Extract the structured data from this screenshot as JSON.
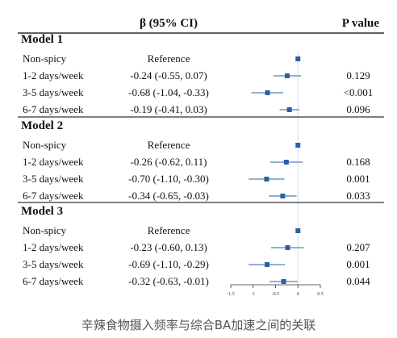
{
  "chart_data": {
    "type": "forest",
    "headers": {
      "estimate": "β (95% CI)",
      "pvalue": "P value"
    },
    "xlim": [
      -1.5,
      0.5
    ],
    "xticks": [
      -1.5,
      -1,
      -0.5,
      0,
      0.5
    ],
    "xtick_labels": [
      "-1.5",
      "-1",
      "-0.5",
      "0",
      "0.5"
    ],
    "reference_line": 0,
    "colors": {
      "marker": "#2b5ea7",
      "ci": "#2b5ea7",
      "refline": "#d9e3ee",
      "rule": "#000000"
    },
    "models": [
      {
        "name": "Model 1",
        "rows": [
          {
            "label": "Non-spicy",
            "est_text": "Reference",
            "p": "",
            "beta": 0,
            "lo": 0,
            "hi": 0
          },
          {
            "label": "1-2 days/week",
            "est_text": "-0.24 (-0.55, 0.07)",
            "p": "0.129",
            "beta": -0.24,
            "lo": -0.55,
            "hi": 0.07
          },
          {
            "label": "3-5 days/week",
            "est_text": "-0.68 (-1.04, -0.33)",
            "p": "<0.001",
            "beta": -0.68,
            "lo": -1.04,
            "hi": -0.33
          },
          {
            "label": "6-7 days/week",
            "est_text": "-0.19 (-0.41, 0.03)",
            "p": "0.096",
            "beta": -0.19,
            "lo": -0.41,
            "hi": 0.03
          }
        ]
      },
      {
        "name": "Model 2",
        "rows": [
          {
            "label": "Non-spicy",
            "est_text": "Reference",
            "p": "",
            "beta": 0,
            "lo": 0,
            "hi": 0
          },
          {
            "label": "1-2 days/week",
            "est_text": "-0.26 (-0.62, 0.11)",
            "p": "0.168",
            "beta": -0.26,
            "lo": -0.62,
            "hi": 0.11
          },
          {
            "label": "3-5 days/week",
            "est_text": "-0.70 (-1.10, -0.30)",
            "p": "0.001",
            "beta": -0.7,
            "lo": -1.1,
            "hi": -0.3
          },
          {
            "label": "6-7 days/week",
            "est_text": "-0.34 (-0.65, -0.03)",
            "p": "0.033",
            "beta": -0.34,
            "lo": -0.65,
            "hi": -0.03
          }
        ]
      },
      {
        "name": "Model 3",
        "rows": [
          {
            "label": "Non-spicy",
            "est_text": "Reference",
            "p": "",
            "beta": 0,
            "lo": 0,
            "hi": 0
          },
          {
            "label": "1-2 days/week",
            "est_text": "-0.23 (-0.60, 0.13)",
            "p": "0.207",
            "beta": -0.23,
            "lo": -0.6,
            "hi": 0.13
          },
          {
            "label": "3-5 days/week",
            "est_text": "-0.69 (-1.10, -0.29)",
            "p": "0.001",
            "beta": -0.69,
            "lo": -1.1,
            "hi": -0.29
          },
          {
            "label": "6-7 days/week",
            "est_text": "-0.32 (-0.63, -0.01)",
            "p": "0.044",
            "beta": -0.32,
            "lo": -0.63,
            "hi": -0.01
          }
        ]
      }
    ]
  },
  "caption": "辛辣食物摄入频率与综合BA加速之间的关联"
}
